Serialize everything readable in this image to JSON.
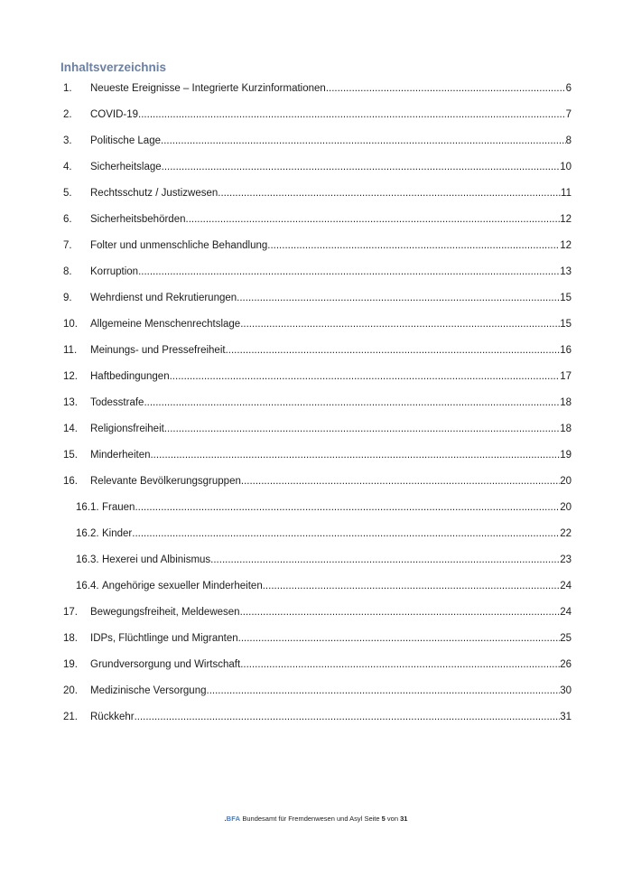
{
  "heading": "Inhaltsverzeichnis",
  "colors": {
    "heading_blue": "#6c80a0",
    "body_text": "#1c1c1c",
    "footer_logo_blue": "#4e7cb8",
    "page_background": "#ffffff"
  },
  "toc": {
    "entries": [
      {
        "num": "1.",
        "label": "Neueste Ereignisse – Integrierte Kurzinformationen",
        "page": "6",
        "level": 1
      },
      {
        "num": "2.",
        "label": "COVID-19",
        "page": "7",
        "level": 1
      },
      {
        "num": "3.",
        "label": "Politische Lage",
        "page": "8",
        "level": 1
      },
      {
        "num": "4.",
        "label": "Sicherheitslage",
        "page": "10",
        "level": 1
      },
      {
        "num": "5.",
        "label": "Rechtsschutz / Justizwesen",
        "page": "11",
        "level": 1
      },
      {
        "num": "6.",
        "label": "Sicherheitsbehörden",
        "page": "12",
        "level": 1
      },
      {
        "num": "7.",
        "label": "Folter und unmenschliche Behandlung",
        "page": "12",
        "level": 1
      },
      {
        "num": "8.",
        "label": "Korruption",
        "page": "13",
        "level": 1
      },
      {
        "num": "9.",
        "label": "Wehrdienst und Rekrutierungen",
        "page": "15",
        "level": 1
      },
      {
        "num": "10.",
        "label": "Allgemeine Menschenrechtslage",
        "page": "15",
        "level": 1
      },
      {
        "num": "11.",
        "label": "Meinungs- und Pressefreiheit",
        "page": "16",
        "level": 1
      },
      {
        "num": "12.",
        "label": "Haftbedingungen",
        "page": "17",
        "level": 1
      },
      {
        "num": "13.",
        "label": "Todesstrafe",
        "page": "18",
        "level": 1
      },
      {
        "num": "14.",
        "label": "Religionsfreiheit",
        "page": "18",
        "level": 1
      },
      {
        "num": "15.",
        "label": "Minderheiten",
        "page": "19",
        "level": 1
      },
      {
        "num": "16.",
        "label": "Relevante Bevölkerungsgruppen",
        "page": "20",
        "level": 1
      },
      {
        "num": "16.1.",
        "label": "Frauen",
        "page": "20",
        "level": 2
      },
      {
        "num": "16.2.",
        "label": "Kinder",
        "page": "22",
        "level": 2
      },
      {
        "num": "16.3.",
        "label": "Hexerei und Albinismus",
        "page": "23",
        "level": 2
      },
      {
        "num": "16.4.",
        "label": "Angehörige sexueller Minderheiten",
        "page": "24",
        "level": 2
      },
      {
        "num": "17.",
        "label": "Bewegungsfreiheit, Meldewesen",
        "page": "24",
        "level": 1
      },
      {
        "num": "18.",
        "label": "IDPs, Flüchtlinge und Migranten",
        "page": "25",
        "level": 1
      },
      {
        "num": "19.",
        "label": "Grundversorgung und Wirtschaft",
        "page": "26",
        "level": 1
      },
      {
        "num": "20.",
        "label": "Medizinische Versorgung",
        "page": "30",
        "level": 1
      },
      {
        "num": "21.",
        "label": "Rückkehr",
        "page": "31",
        "level": 1
      }
    ]
  },
  "footer": {
    "logo_dot": ".",
    "logo_text": "BFA",
    "org": "Bundesamt für Fremdenwesen und Asyl",
    "page_label": "Seite",
    "page_current": "5",
    "of_label": "von",
    "page_total": "31"
  }
}
